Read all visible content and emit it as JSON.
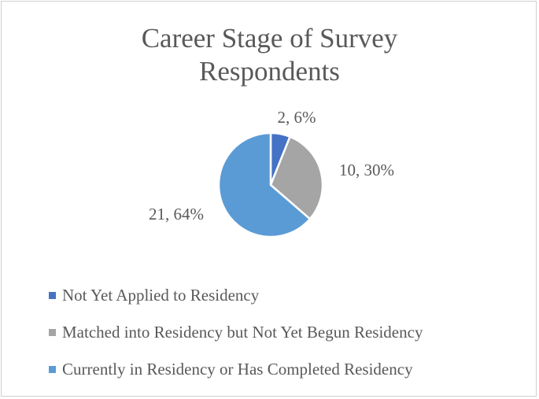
{
  "chart_data": {
    "type": "pie",
    "title_lines": [
      "Career Stage of Survey",
      "Respondents"
    ],
    "slices": [
      {
        "label": "Not Yet Applied to Residency",
        "value": 2,
        "percent": "6%",
        "color": "#4472c4"
      },
      {
        "label": "Matched into Residency but Not Yet Begun Residency",
        "value": 10,
        "percent": "30%",
        "color": "#a5a5a5"
      },
      {
        "label": "Currently in Residency or Has Completed Residency",
        "value": 21,
        "percent": "64%",
        "color": "#5b9bd5"
      }
    ],
    "data_labels": [
      "2, 6%",
      "10, 30%",
      "21, 64%"
    ],
    "legend_position": "bottom",
    "colors": {
      "text": "#595959",
      "slice_border": "#ffffff"
    }
  }
}
